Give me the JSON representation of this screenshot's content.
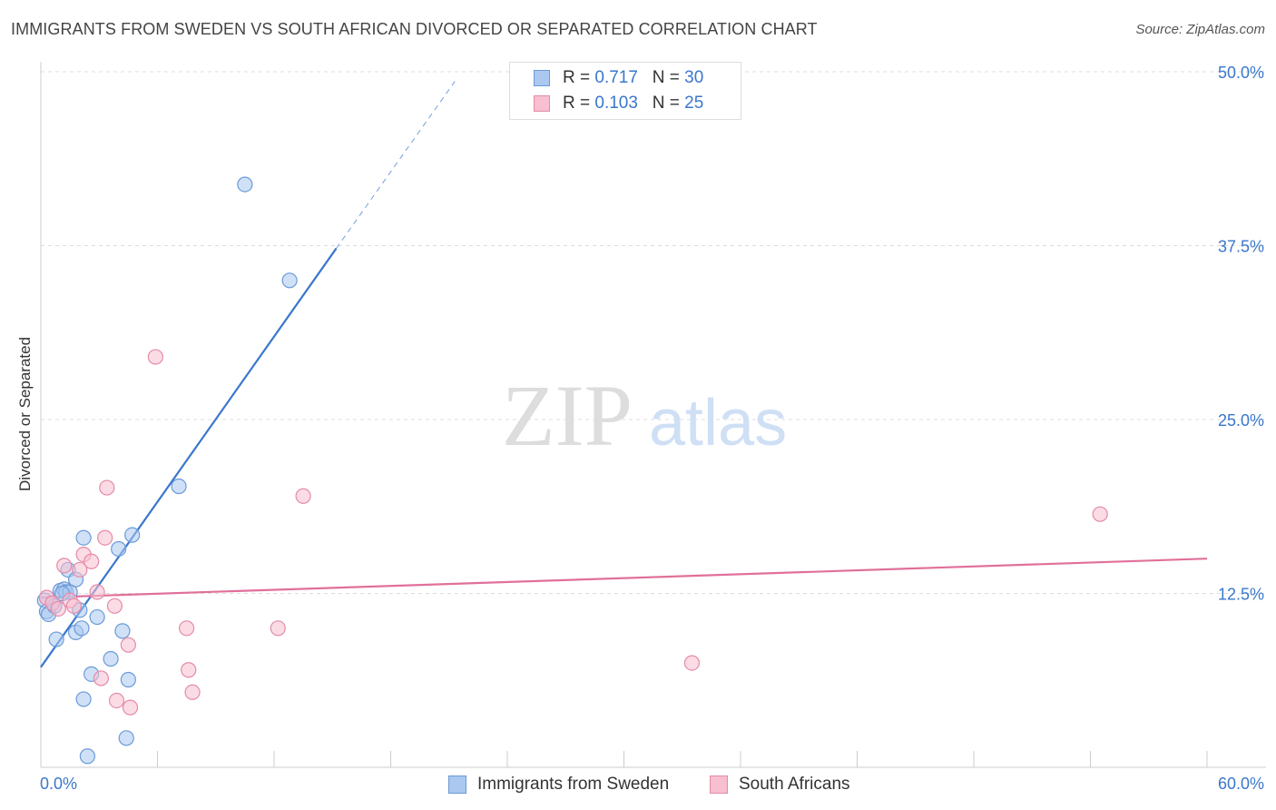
{
  "header": {
    "title": "IMMIGRANTS FROM SWEDEN VS SOUTH AFRICAN DIVORCED OR SEPARATED CORRELATION CHART",
    "source": "Source: ZipAtlas.com"
  },
  "watermark": {
    "zip": "ZIP",
    "atlas": "atlas"
  },
  "legend_top": [
    {
      "r_label": "R = ",
      "r_value": "0.717",
      "n_label": "N = ",
      "n_value": "30"
    },
    {
      "r_label": "R = ",
      "r_value": "0.103",
      "n_label": "N = ",
      "n_value": "25"
    }
  ],
  "legend_bottom": [
    {
      "label": "Immigrants from Sweden"
    },
    {
      "label": "South Africans"
    }
  ],
  "colors": {
    "blue_fill": "#aac8f0",
    "blue_stroke": "#6a9ad8",
    "blue_line": "#3a77cc",
    "pink_fill": "#f7bfd0",
    "pink_stroke": "#e58aa8",
    "pink_line": "#e0709a",
    "axis_label": "#3a77cc",
    "grid": "#dddddd"
  },
  "chart_data": {
    "type": "scatter",
    "title": "IMMIGRANTS FROM SWEDEN VS SOUTH AFRICAN DIVORCED OR SEPARATED CORRELATION CHART",
    "xlabel": "",
    "ylabel": "Divorced or Separated",
    "xlim": [
      0,
      60
    ],
    "ylim": [
      0,
      50
    ],
    "x_tick_labels": [
      "0.0%",
      "60.0%"
    ],
    "y_ticks": [
      12.5,
      25.0,
      37.5,
      50.0
    ],
    "y_tick_labels": [
      "12.5%",
      "25.0%",
      "37.5%",
      "50.0%"
    ],
    "grid": true,
    "legend_position": "top-center",
    "series": [
      {
        "name": "Immigrants from Sweden",
        "r": 0.717,
        "n": 30,
        "trend": {
          "x": [
            0,
            15.2
          ],
          "y": [
            7.2,
            37.3
          ],
          "dashed_to": [
            21.3,
            49.3
          ]
        },
        "points": [
          [
            0.2,
            12.0
          ],
          [
            0.3,
            11.2
          ],
          [
            0.4,
            11.0
          ],
          [
            0.6,
            11.8
          ],
          [
            0.8,
            9.2
          ],
          [
            1.0,
            12.7
          ],
          [
            1.2,
            12.8
          ],
          [
            1.3,
            12.6
          ],
          [
            1.4,
            14.2
          ],
          [
            1.5,
            12.6
          ],
          [
            1.8,
            9.7
          ],
          [
            1.8,
            13.5
          ],
          [
            2.0,
            11.3
          ],
          [
            2.1,
            10.0
          ],
          [
            2.2,
            16.5
          ],
          [
            2.4,
            0.8
          ],
          [
            2.6,
            6.7
          ],
          [
            2.2,
            4.9
          ],
          [
            2.9,
            10.8
          ],
          [
            3.6,
            7.8
          ],
          [
            4.0,
            15.7
          ],
          [
            4.2,
            9.8
          ],
          [
            4.4,
            2.1
          ],
          [
            4.5,
            6.3
          ],
          [
            4.7,
            16.7
          ],
          [
            7.1,
            20.2
          ],
          [
            10.5,
            41.9
          ],
          [
            12.8,
            35.0
          ],
          [
            1.1,
            12.5
          ],
          [
            0.7,
            11.6
          ]
        ]
      },
      {
        "name": "South Africans",
        "r": 0.103,
        "n": 25,
        "trend": {
          "x": [
            0,
            60
          ],
          "y": [
            12.2,
            15.0
          ]
        },
        "points": [
          [
            0.3,
            12.2
          ],
          [
            0.6,
            11.8
          ],
          [
            0.9,
            11.4
          ],
          [
            1.2,
            14.5
          ],
          [
            1.5,
            12.0
          ],
          [
            1.7,
            11.6
          ],
          [
            2.0,
            14.2
          ],
          [
            2.2,
            15.3
          ],
          [
            2.6,
            14.8
          ],
          [
            3.1,
            6.4
          ],
          [
            3.3,
            16.5
          ],
          [
            3.4,
            20.1
          ],
          [
            3.8,
            11.6
          ],
          [
            3.9,
            4.8
          ],
          [
            4.5,
            8.8
          ],
          [
            4.6,
            4.3
          ],
          [
            5.9,
            29.5
          ],
          [
            7.5,
            10.0
          ],
          [
            7.6,
            7.0
          ],
          [
            7.8,
            5.4
          ],
          [
            12.2,
            10.0
          ],
          [
            13.5,
            19.5
          ],
          [
            33.5,
            7.5
          ],
          [
            54.5,
            18.2
          ],
          [
            2.9,
            12.6
          ]
        ]
      }
    ]
  }
}
